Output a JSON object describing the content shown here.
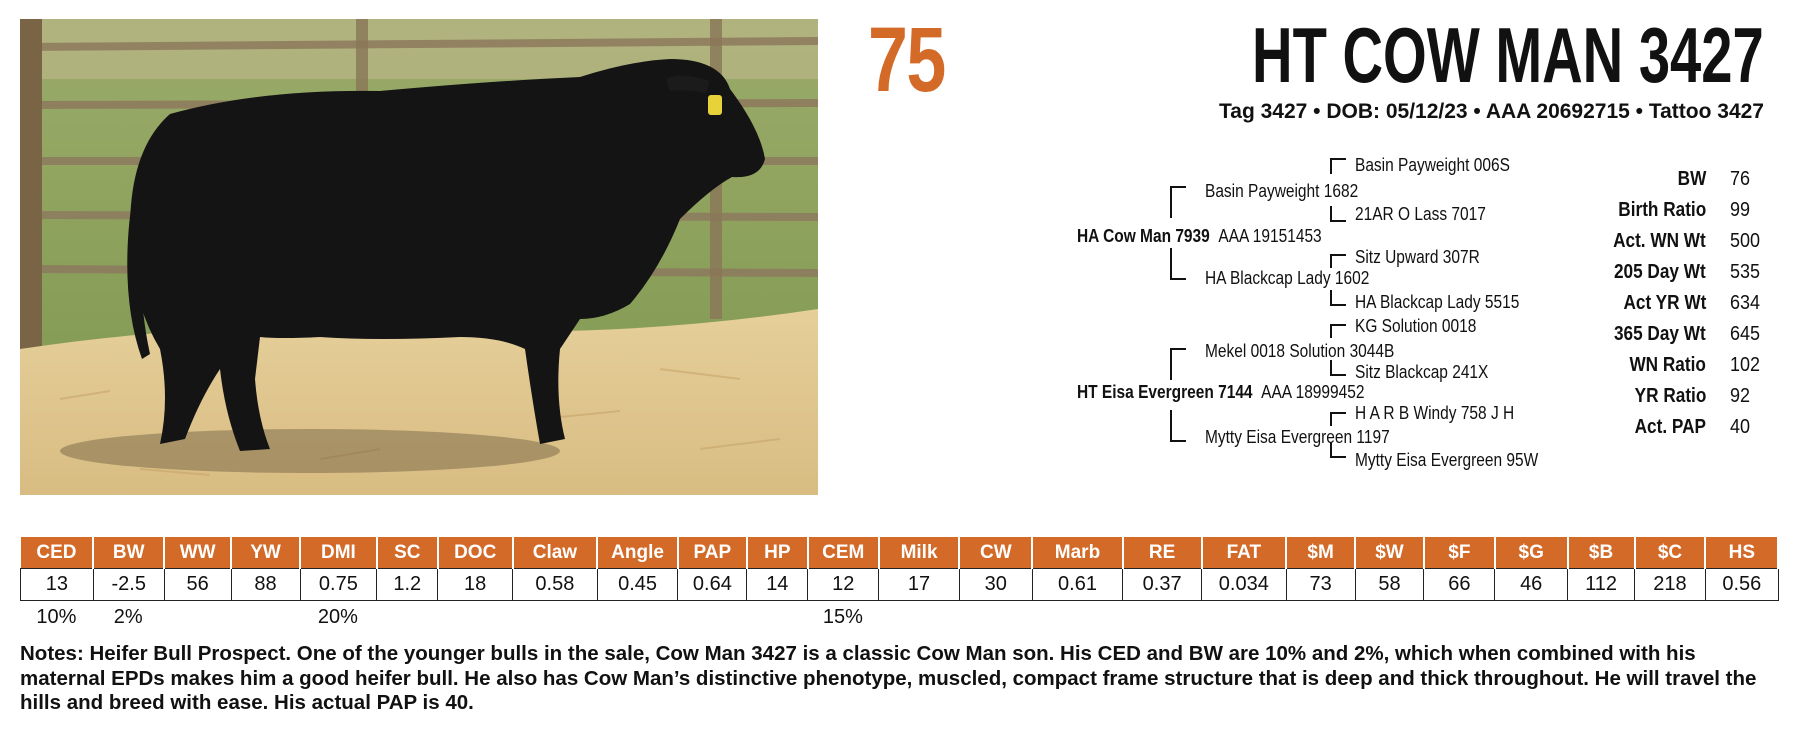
{
  "lot_number": "75",
  "animal_name": "HT COW MAN 3427",
  "id_line": "Tag 3427 • DOB: 05/12/23 • AAA 20692715 • Tattoo 3427",
  "photo": {
    "description_icon": "black-angus-bull-photo"
  },
  "pedigree": {
    "sire": {
      "name": "HA Cow Man 7939",
      "reg": "AAA 19151453"
    },
    "sire_sire": "Basin Payweight 1682",
    "sire_sire_sire": "Basin Payweight 006S",
    "sire_sire_dam": "21AR O Lass 7017",
    "sire_dam": "HA Blackcap Lady 1602",
    "sire_dam_sire": "Sitz Upward 307R",
    "sire_dam_dam": "HA Blackcap Lady 5515",
    "dam": {
      "name": "HT Eisa Evergreen 7144",
      "reg": "AAA 18999452"
    },
    "dam_sire": "Mekel 0018 Solution 3044B",
    "dam_sire_sire": "KG Solution 0018",
    "dam_sire_dam": "Sitz Blackcap 241X",
    "dam_dam": "Mytty Eisa Evergreen 1197",
    "dam_dam_sire": "H A R B Windy 758 J H",
    "dam_dam_dam": "Mytty Eisa Evergreen 95W"
  },
  "stats": [
    {
      "label": "BW",
      "value": "76"
    },
    {
      "label": "Birth Ratio",
      "value": "99"
    },
    {
      "label": "Act. WN Wt",
      "value": "500"
    },
    {
      "label": "205 Day Wt",
      "value": "535"
    },
    {
      "label": "Act YR Wt",
      "value": "634"
    },
    {
      "label": "365 Day Wt",
      "value": "645"
    },
    {
      "label": "WN Ratio",
      "value": "102"
    },
    {
      "label": "YR Ratio",
      "value": "92"
    },
    {
      "label": "Act. PAP",
      "value": "40"
    }
  ],
  "epd_headers": [
    "CED",
    "BW",
    "WW",
    "YW",
    "DMI",
    "SC",
    "DOC",
    "Claw",
    "Angle",
    "PAP",
    "HP",
    "CEM",
    "Milk",
    "CW",
    "Marb",
    "RE",
    "FAT",
    "$M",
    "$W",
    "$F",
    "$G",
    "$B",
    "$C",
    "HS"
  ],
  "epd_values": [
    "13",
    "-2.5",
    "56",
    "88",
    "0.75",
    "1.2",
    "18",
    "0.58",
    "0.45",
    "0.64",
    "14",
    "12",
    "17",
    "30",
    "0.61",
    "0.37",
    "0.034",
    "73",
    "58",
    "66",
    "46",
    "112",
    "218",
    "0.56"
  ],
  "epd_percentiles": [
    "10%",
    "2%",
    "",
    "",
    "20%",
    "",
    "",
    "",
    "",
    "",
    "",
    "15%",
    "",
    "",
    "",
    "",
    "",
    "",
    "",
    "",
    "",
    "",
    "",
    ""
  ],
  "notes": "Notes: Heifer Bull Prospect. One of the younger bulls in the sale, Cow Man 3427 is a classic Cow Man son. His CED and BW are 10% and 2%, which when combined with his maternal EPDs makes him a good heifer bull. He also has Cow Man’s distinctive phenotype, muscled, compact frame structure that is deep and thick throughout. He will travel the hills and breed with ease. His actual PAP is 40.",
  "colors": {
    "accent": "#d36a28",
    "text": "#111111"
  }
}
